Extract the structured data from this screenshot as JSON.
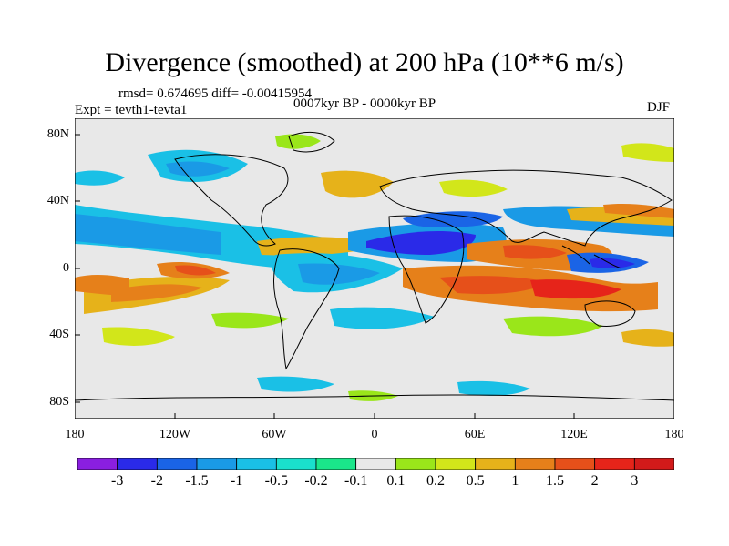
{
  "title": "Divergence (smoothed) at 200 hPa (10**6 m/s)",
  "stats": "rmsd= 0.674695 diff= -0.00415954",
  "period": "0007kyr BP - 0000kyr BP",
  "expt": "Expt = tevth1-tevta1",
  "season": "DJF",
  "axes": {
    "lat_labels": [
      "80N",
      "40N",
      "0",
      "40S",
      "80S"
    ],
    "lon_labels": [
      "180",
      "120W",
      "60W",
      "0",
      "60E",
      "120E",
      "180"
    ]
  },
  "colorbar": {
    "labels": [
      "-3",
      "-2",
      "-1.5",
      "-1",
      "-0.5",
      "-0.2",
      "-0.1",
      "0.1",
      "0.2",
      "0.5",
      "1",
      "1.5",
      "2",
      "3"
    ],
    "colors": [
      "#8a1fe0",
      "#2a2ae8",
      "#1a64e6",
      "#1a9ae6",
      "#1ac0e6",
      "#1ae0cc",
      "#1ae68a",
      "#e8e8e8",
      "#9ae61a",
      "#d2e61a",
      "#e6b21a",
      "#e6801a",
      "#e6501a",
      "#e6241a",
      "#d21a1a"
    ]
  },
  "map": {
    "background": "#e8e8e8",
    "coast": "#000000"
  }
}
